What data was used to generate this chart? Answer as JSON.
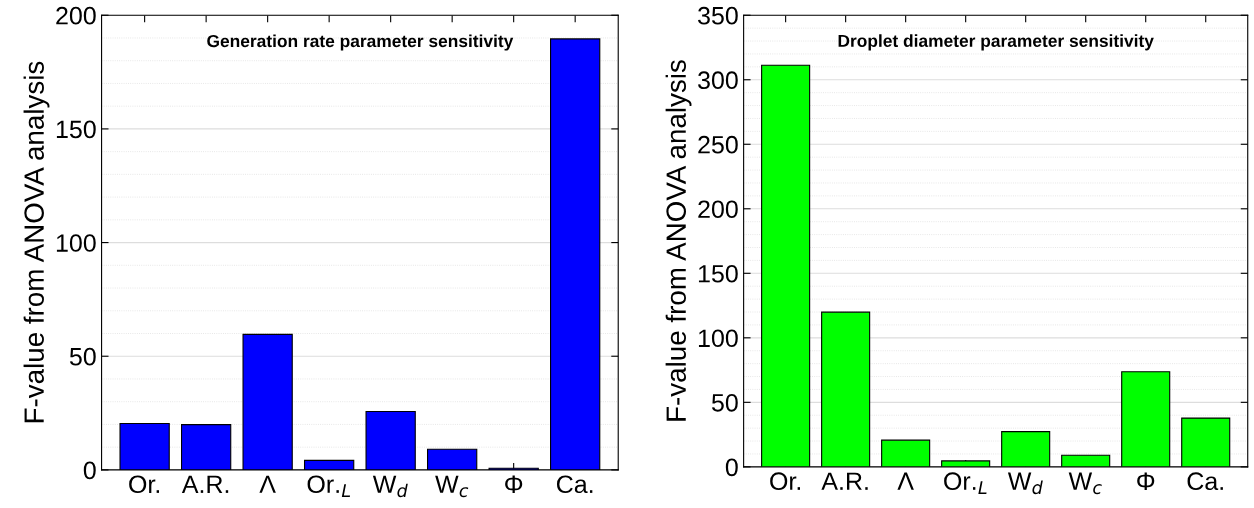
{
  "chart_data": [
    {
      "type": "bar",
      "title": "Generation rate parameter sensitivity",
      "ylabel": "F-value from ANOVA analysis",
      "categories": [
        "Or.",
        "A.R.",
        "Λ",
        "Or.$_{L}$",
        "W$_{d}$",
        "W$_{c}$",
        "Φ",
        "Ca."
      ],
      "values": [
        20.4,
        19.9,
        59.6,
        4.2,
        25.7,
        9.1,
        0.7,
        189.6
      ],
      "color": "#0000ff",
      "ylim": [
        0,
        200
      ],
      "yticks": [
        0,
        50,
        100,
        150,
        200
      ],
      "grid": "y"
    },
    {
      "type": "bar",
      "title": "Droplet diameter parameter sensitivity",
      "ylabel": "F-value from ANOVA analysis",
      "categories": [
        "Or.",
        "A.R.",
        "Λ",
        "Or.$_{L}$",
        "W$_{d}$",
        "W$_{c}$",
        "Φ",
        "Ca."
      ],
      "values": [
        311.2,
        119.9,
        20.7,
        4.6,
        27.3,
        9.0,
        73.7,
        37.8
      ],
      "color": "#00ff00",
      "ylim": [
        0,
        350
      ],
      "yticks": [
        0,
        50,
        100,
        150,
        200,
        250,
        300,
        350
      ],
      "grid": "y"
    }
  ]
}
